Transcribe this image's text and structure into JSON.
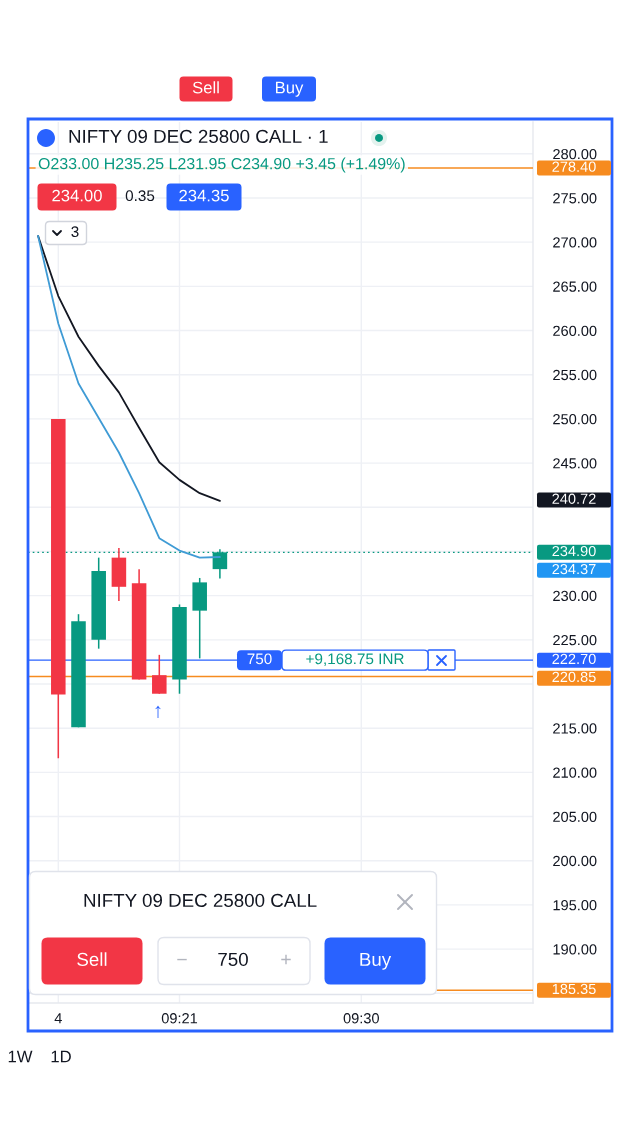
{
  "chart_data": {
    "type": "candlestick",
    "title": "NIFTY 09 DEC 25800 CALL · 1",
    "subtitle": "O233.00 H235.25 L231.95 C234.90 +3.45 (+1.49%)",
    "categories": [
      null,
      "4",
      null,
      null,
      null,
      null,
      null,
      "09:21",
      null,
      null,
      null,
      null,
      null,
      null,
      null,
      null,
      "09:30",
      null,
      null,
      null,
      null,
      null,
      null,
      null,
      null
    ],
    "ohlc": [
      null,
      [
        250.0,
        250.0,
        211.6,
        218.8
      ],
      [
        215.1,
        227.9,
        215.1,
        227.1
      ],
      [
        225.0,
        234.3,
        224.0,
        232.8
      ],
      [
        234.3,
        235.4,
        229.4,
        231.0
      ],
      [
        231.4,
        233.0,
        220.5,
        220.5
      ],
      [
        221.0,
        223.3,
        218.9,
        218.9
      ],
      [
        220.5,
        229.0,
        218.9,
        228.7
      ],
      [
        228.3,
        232.0,
        222.9,
        231.5
      ],
      [
        233.0,
        235.25,
        231.95,
        234.9
      ],
      null,
      null,
      null,
      null,
      null,
      null,
      null,
      null,
      null,
      null,
      null,
      null,
      null,
      null,
      null
    ],
    "colors": [
      null,
      "#f23645",
      "#089981",
      "#089981",
      "#f23645",
      "#f23645",
      "#f23645",
      "#089981",
      "#089981",
      "#089981",
      null,
      null,
      null,
      null,
      null,
      null,
      null,
      null,
      null,
      null,
      null,
      null,
      null,
      null,
      null
    ],
    "series": [
      {
        "type": "line",
        "color": "#131722",
        "values": [
          270.7,
          263.9,
          259.3,
          256.0,
          253.0,
          249.0,
          245.1,
          243.1,
          241.6,
          240.72,
          null,
          null,
          null,
          null,
          null,
          null,
          null,
          null,
          null,
          null,
          null,
          null,
          null,
          null,
          null
        ]
      },
      {
        "type": "line",
        "color": "#3f9bd5",
        "values": [
          270.7,
          260.8,
          254.0,
          250.1,
          246.2,
          241.6,
          236.5,
          235.1,
          234.3,
          234.37,
          null,
          null,
          null,
          null,
          null,
          null,
          null,
          null,
          null,
          null,
          null,
          null,
          null,
          null,
          null
        ]
      }
    ],
    "ref_lines": [
      {
        "axis": "y",
        "value": 278.4,
        "label": "278.40",
        "color": "#f68b1f",
        "line_style": "solid"
      },
      {
        "axis": "y",
        "value": 234.9,
        "label": "234.90",
        "color": "#089981",
        "line_style": "dotted"
      },
      {
        "axis": "y",
        "value": 222.7,
        "label": "222.70",
        "color": "#2962ff",
        "line_style": "solid"
      },
      {
        "axis": "y",
        "value": 220.85,
        "label": "220.85",
        "color": "#f68b1f",
        "line_style": "solid"
      },
      {
        "axis": "y",
        "value": 185.35,
        "label": "185.35",
        "color": "#f68b1f",
        "line_style": "solid"
      }
    ],
    "ylim": [
      183.9,
      283.6
    ],
    "yticks": [
      {
        "value": 185,
        "label": null
      },
      {
        "value": 190,
        "label": "190.00"
      },
      {
        "value": 195,
        "label": "195.00"
      },
      {
        "value": 200,
        "label": "200.00"
      },
      {
        "value": 205,
        "label": "205.00"
      },
      {
        "value": 210,
        "label": "210.00"
      },
      {
        "value": 215,
        "label": "215.00"
      },
      {
        "value": 220,
        "label": null
      },
      {
        "value": 225,
        "label": "225.00"
      },
      {
        "value": 230,
        "label": "230.00"
      },
      {
        "value": 235,
        "label": null
      },
      {
        "value": 240,
        "label": null
      },
      {
        "value": 245,
        "label": "245.00"
      },
      {
        "value": 250,
        "label": "250.00"
      },
      {
        "value": 255,
        "label": "255.00"
      },
      {
        "value": 260,
        "label": "260.00"
      },
      {
        "value": 265,
        "label": "265.00"
      },
      {
        "value": 270,
        "label": "270.00"
      },
      {
        "value": 275,
        "label": "275.00"
      },
      {
        "value": 280,
        "label": "280.00"
      }
    ],
    "grid": true,
    "annotations": [
      "234.00",
      "0.35",
      "234.35",
      "3",
      {
        "text": "750",
        "y": 222.7
      },
      {
        "text": "+9,168.75 INR",
        "y": 222.7
      },
      "↑",
      "NIFTY 09 DEC 25800 CALL",
      "Sell",
      "−",
      "750",
      "+",
      "Buy",
      "Sell",
      "Buy",
      "1W",
      "1D",
      "240.72",
      "234.37"
    ]
  }
}
